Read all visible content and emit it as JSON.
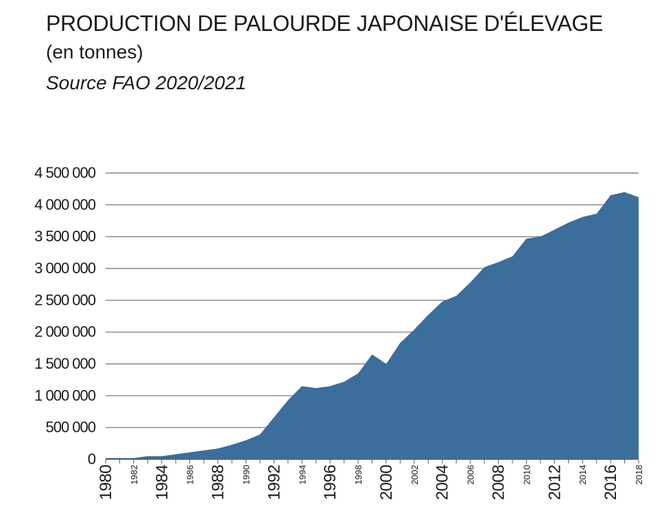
{
  "header": {
    "title": "PRODUCTION DE PALOURDE JAPONAISE D'ÉLEVAGE",
    "subtitle": "(en tonnes)",
    "source": "Source FAO 2020/2021"
  },
  "colors": {
    "area_fill": "#3b6e9b",
    "grid": "#6b6b6b",
    "text": "#1a1a1a"
  },
  "chart_data": {
    "type": "area",
    "title": "PRODUCTION DE PALOURDE JAPONAISE D'ÉLEVAGE",
    "ylabel": "",
    "xlabel": "",
    "ylim": [
      0,
      4500000
    ],
    "xlim": [
      1980,
      2018
    ],
    "grid": true,
    "y_ticks": [
      {
        "value": 0,
        "label": "0"
      },
      {
        "value": 500000,
        "label": "500 000"
      },
      {
        "value": 1000000,
        "label": "1 000 000"
      },
      {
        "value": 1500000,
        "label": "1 500 000"
      },
      {
        "value": 2000000,
        "label": "2 000 000"
      },
      {
        "value": 2500000,
        "label": "2 500 000"
      },
      {
        "value": 3000000,
        "label": "3 000 000"
      },
      {
        "value": 3500000,
        "label": "3 500 000"
      },
      {
        "value": 4000000,
        "label": "4 000 000"
      },
      {
        "value": 4500000,
        "label": "4 500 000"
      }
    ],
    "x_ticks": [
      {
        "value": 1980,
        "label": "1980",
        "major": true
      },
      {
        "value": 1982,
        "label": "1982",
        "major": false
      },
      {
        "value": 1984,
        "label": "1984",
        "major": true
      },
      {
        "value": 1986,
        "label": "1986",
        "major": false
      },
      {
        "value": 1988,
        "label": "1988",
        "major": true
      },
      {
        "value": 1990,
        "label": "1990",
        "major": false
      },
      {
        "value": 1992,
        "label": "1992",
        "major": true
      },
      {
        "value": 1994,
        "label": "1994",
        "major": false
      },
      {
        "value": 1996,
        "label": "1996",
        "major": true
      },
      {
        "value": 1998,
        "label": "1998",
        "major": false
      },
      {
        "value": 2000,
        "label": "2000",
        "major": true
      },
      {
        "value": 2002,
        "label": "2002",
        "major": false
      },
      {
        "value": 2004,
        "label": "2004",
        "major": true
      },
      {
        "value": 2006,
        "label": "2006",
        "major": false
      },
      {
        "value": 2008,
        "label": "2008",
        "major": true
      },
      {
        "value": 2010,
        "label": "2010",
        "major": false
      },
      {
        "value": 2012,
        "label": "2012",
        "major": true
      },
      {
        "value": 2014,
        "label": "2014",
        "major": false
      },
      {
        "value": 2016,
        "label": "2016",
        "major": true
      },
      {
        "value": 2018,
        "label": "2018",
        "major": false
      }
    ],
    "x": [
      1980,
      1981,
      1982,
      1983,
      1984,
      1985,
      1986,
      1987,
      1988,
      1989,
      1990,
      1991,
      1992,
      1993,
      1994,
      1995,
      1996,
      1997,
      1998,
      1999,
      2000,
      2001,
      2002,
      2003,
      2004,
      2005,
      2006,
      2007,
      2008,
      2009,
      2010,
      2011,
      2012,
      2013,
      2014,
      2015,
      2016,
      2017,
      2018
    ],
    "series": [
      {
        "values": [
          20000,
          20000,
          20000,
          50000,
          50000,
          80000,
          110000,
          140000,
          170000,
          230000,
          300000,
          390000,
          660000,
          930000,
          1150000,
          1120000,
          1150000,
          1220000,
          1350000,
          1650000,
          1500000,
          1830000,
          2040000,
          2270000,
          2480000,
          2570000,
          2780000,
          3020000,
          3100000,
          3190000,
          3470000,
          3500000,
          3610000,
          3720000,
          3810000,
          3860000,
          4150000,
          4200000,
          4120000
        ]
      }
    ]
  }
}
